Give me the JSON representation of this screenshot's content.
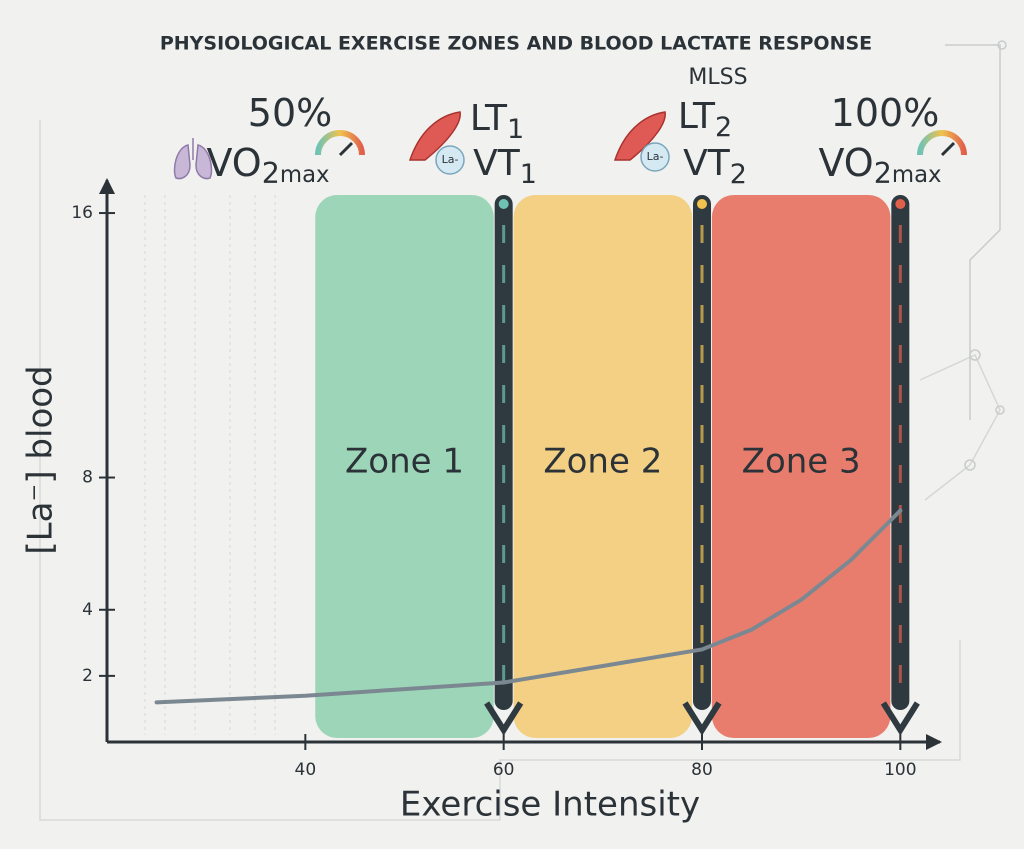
{
  "chart_data": {
    "type": "line",
    "title": "PHYSIOLOGICAL EXERCISE ZONES AND BLOOD LACTATE RESPONSE",
    "x_label": "Exercise Intensity",
    "y_label": "[La⁻] blood",
    "xlim": [
      20,
      104
    ],
    "ylim": [
      0,
      17
    ],
    "xticks": [
      40,
      60,
      80,
      100
    ],
    "yticks": [
      2,
      4,
      8,
      16
    ],
    "x": [
      25,
      40,
      50,
      60,
      70,
      80,
      85,
      90,
      95,
      100
    ],
    "series": [
      {
        "color": "#7b8892",
        "values": [
          1.2,
          1.4,
          1.6,
          1.8,
          2.3,
          2.8,
          3.4,
          4.3,
          5.5,
          7.0
        ]
      }
    ],
    "zones": [
      {
        "label": "Zone 1",
        "start": 41,
        "end": 59,
        "color": "#93d2b1"
      },
      {
        "label": "Zone 2",
        "start": 61,
        "end": 79,
        "color": "#f3cc78"
      },
      {
        "label": "Zone 3",
        "start": 81,
        "end": 99,
        "color": "#e8705e"
      }
    ],
    "thresholds": [
      {
        "x": 60,
        "color": "#6fc3b4"
      },
      {
        "x": 80,
        "color": "#f0c24e"
      },
      {
        "x": 100,
        "color": "#e1604c"
      }
    ],
    "annotations": [
      {
        "text": "50%"
      },
      {
        "text": "VO",
        "sub": "2",
        "suffix": "max"
      },
      {
        "text": "LT",
        "sub": "1"
      },
      {
        "text": "VT",
        "sub": "1"
      },
      {
        "text": "MLSS"
      },
      {
        "text": "LT",
        "sub": "2"
      },
      {
        "text": "VT",
        "sub": "2"
      },
      {
        "text": "100%"
      },
      {
        "text": "VO",
        "sub": "2",
        "suffix": "max"
      }
    ],
    "badges": [
      "La-",
      "La-"
    ]
  }
}
